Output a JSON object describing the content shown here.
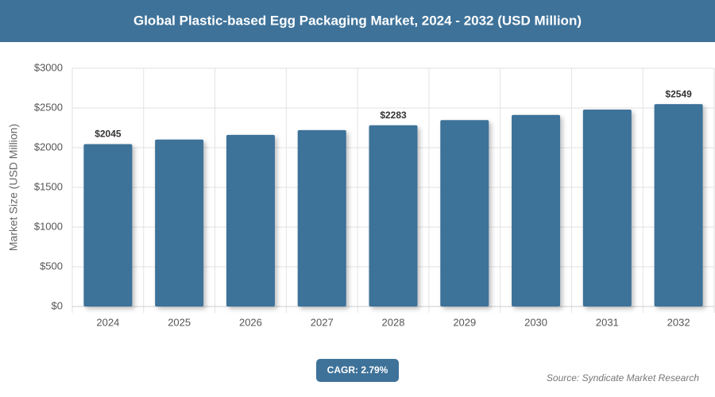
{
  "chart_data": {
    "type": "bar",
    "title": "Global Plastic-based Egg Packaging Market, 2024 - 2032 (USD Million)",
    "y_label": "Market Size (USD Million)",
    "categories": [
      "2024",
      "2025",
      "2026",
      "2027",
      "2028",
      "2029",
      "2030",
      "2031",
      "2032"
    ],
    "values": [
      2045,
      2102,
      2161,
      2221,
      2283,
      2347,
      2412,
      2480,
      2549
    ],
    "value_labels": [
      "$2045",
      null,
      null,
      null,
      "$2283",
      null,
      null,
      null,
      "$2549"
    ],
    "color": "#3e7299",
    "ylim": [
      0,
      3000
    ],
    "yticks": [
      {
        "value": 0,
        "label": "$0"
      },
      {
        "value": 500,
        "label": "$500"
      },
      {
        "value": 1000,
        "label": "$1000"
      },
      {
        "value": 1500,
        "label": "$1500"
      },
      {
        "value": 2000,
        "label": "$2000"
      },
      {
        "value": 2500,
        "label": "$2500"
      },
      {
        "value": 3000,
        "label": "$3000"
      }
    ],
    "grid": true,
    "cagr": "CAGR: 2.79%",
    "source": "Source: Syndicate Market Research"
  }
}
